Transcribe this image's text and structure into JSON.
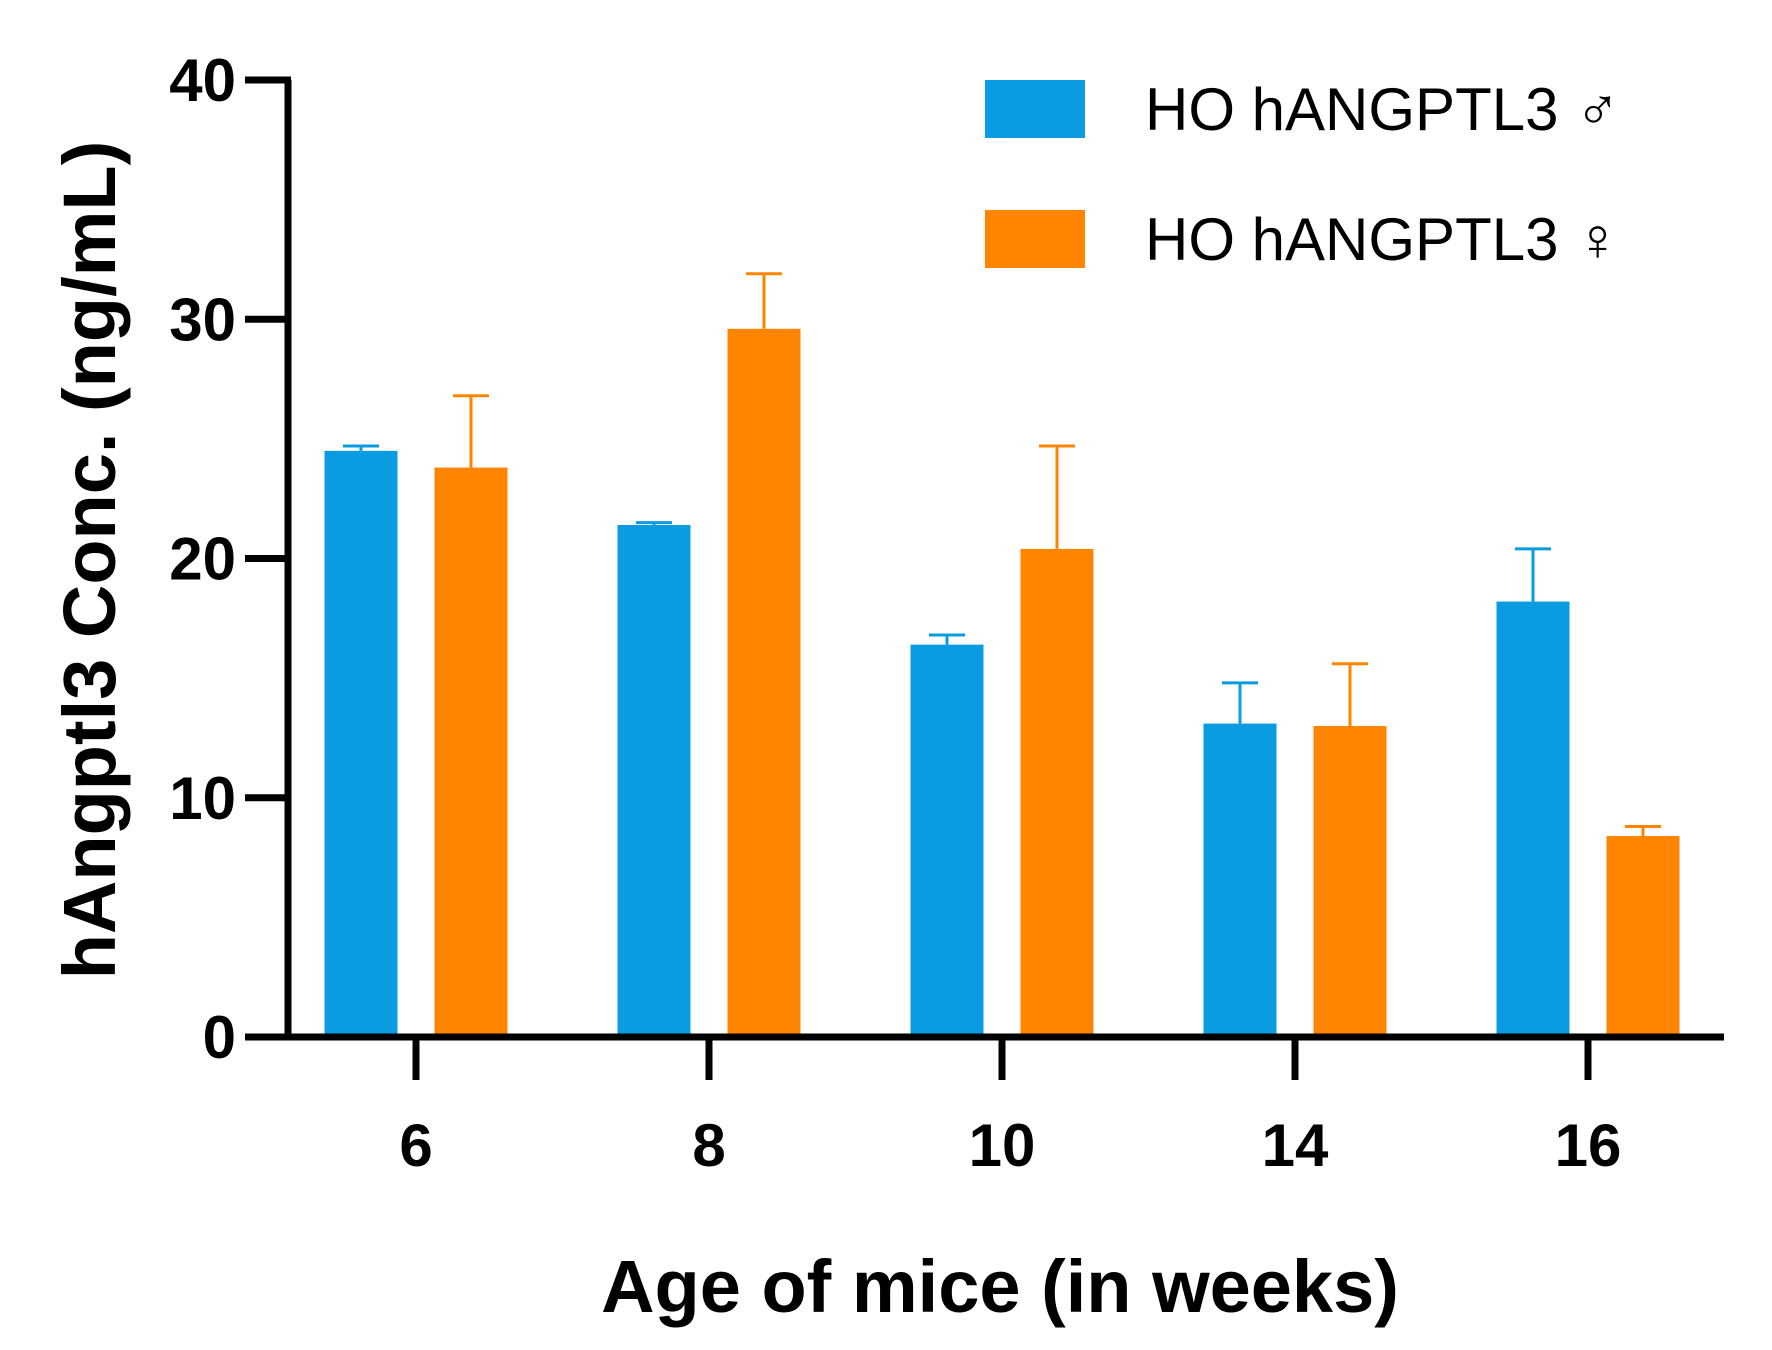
{
  "chart_data": {
    "type": "bar",
    "title": "",
    "xlabel": "Age of mice (in weeks)",
    "ylabel": "hAngptl3 Conc. (ng/mL)",
    "categories": [
      "6",
      "8",
      "10",
      "14",
      "16"
    ],
    "ylim": [
      0,
      40
    ],
    "yticks": [
      "0",
      "10",
      "20",
      "30",
      "40"
    ],
    "grid": false,
    "legend_position": "top-right",
    "series": [
      {
        "name": "HO hANGPTL3 ♂",
        "color": "#0A9BE0",
        "values": [
          24.5,
          21.4,
          16.4,
          13.1,
          18.2
        ],
        "errors": [
          0.2,
          0.1,
          0.4,
          1.7,
          2.2
        ]
      },
      {
        "name": "HO hANGPTL3 ♀",
        "color": "#FF8500",
        "values": [
          23.8,
          29.6,
          20.4,
          13.0,
          8.4
        ],
        "errors": [
          3.0,
          2.3,
          4.3,
          2.6,
          0.4
        ]
      }
    ]
  }
}
